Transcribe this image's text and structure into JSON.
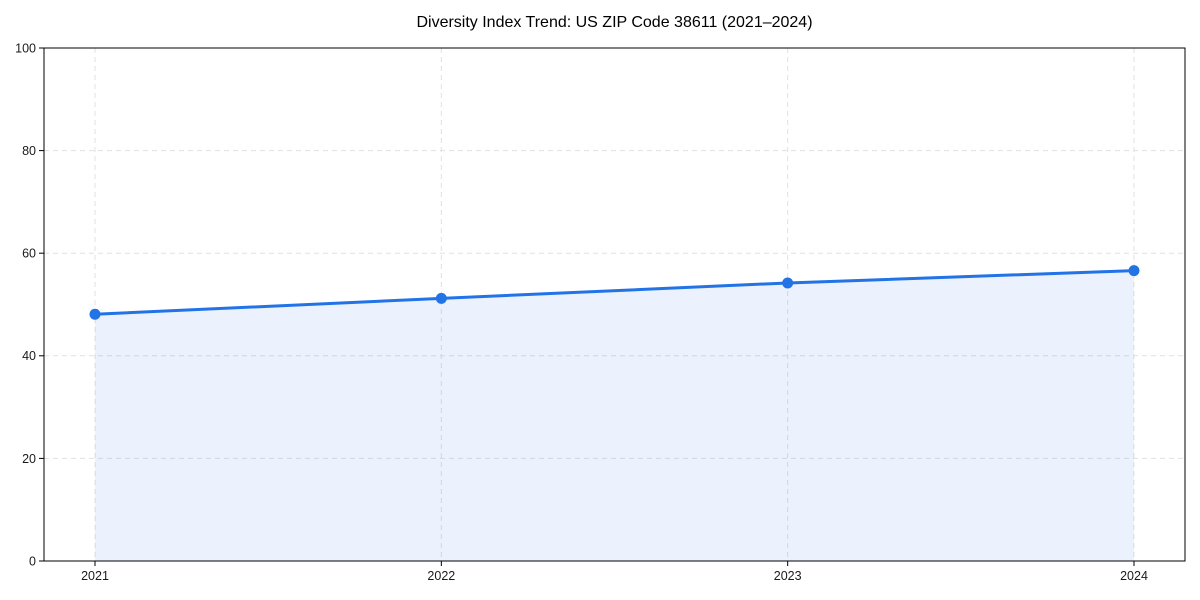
{
  "chart_data": {
    "type": "area",
    "title": "Diversity Index Trend: US ZIP Code 38611 (2021–2024)",
    "categories": [
      "2021",
      "2022",
      "2023",
      "2024"
    ],
    "series": [
      {
        "name": "Diversity Index",
        "values": [
          48.1,
          51.2,
          54.2,
          56.6
        ]
      }
    ],
    "xlabel": "",
    "ylabel": "",
    "ylim": [
      0,
      100
    ],
    "yticks": [
      0,
      20,
      40,
      60,
      80,
      100
    ],
    "grid": "dashed",
    "legend_position": "none",
    "colors": {
      "line": "#2273e6",
      "marker": "#2273e6",
      "fill": "#2273e6",
      "fill_opacity": "0.09",
      "grid": "#e1e1e1",
      "axis": "#000000",
      "tick_text": "#1a1a1a",
      "background": "#ffffff"
    }
  }
}
